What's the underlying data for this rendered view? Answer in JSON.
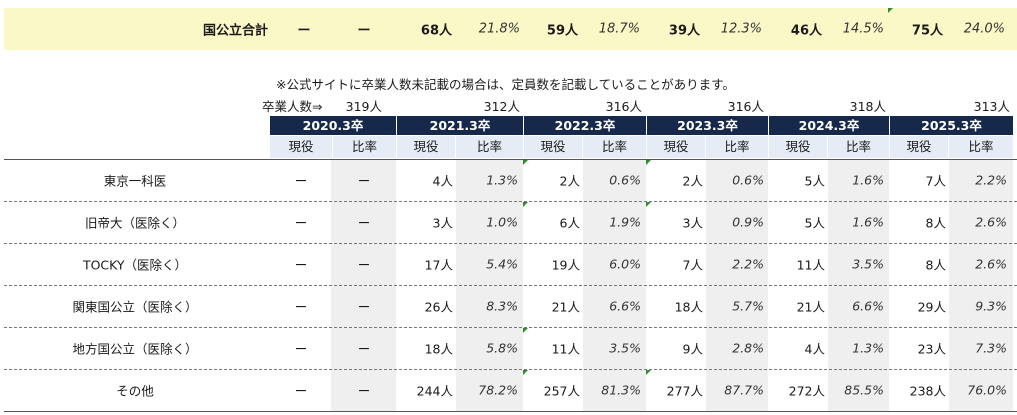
{
  "total": {
    "label": "国公立合計",
    "dash1": "ー",
    "dash2": "ー",
    "values": [
      {
        "count": "68人",
        "rate": "21.8%"
      },
      {
        "count": "59人",
        "rate": "18.7%"
      },
      {
        "count": "39人",
        "rate": "12.3%"
      },
      {
        "count": "46人",
        "rate": "14.5%"
      },
      {
        "count": "75人",
        "rate": "24.0%"
      }
    ]
  },
  "note": "※公式サイトに卒業人数未記載の場合は、定員数を記載していることがあります。",
  "graduates": {
    "label": "卒業人数⇒",
    "values": [
      "319人",
      "312人",
      "316人",
      "316人",
      "318人",
      "313人"
    ]
  },
  "years": [
    "2020.3卒",
    "2021.3卒",
    "2022.3卒",
    "2023.3卒",
    "2024.3卒",
    "2025.3卒"
  ],
  "subheaders": {
    "current": "現役",
    "ratio": "比率"
  },
  "rows": [
    {
      "label": "東京一科医",
      "c2020": "ー",
      "r2020": "ー",
      "cells": [
        [
          "4人",
          "1.3%"
        ],
        [
          "2人",
          "0.6%"
        ],
        [
          "2人",
          "0.6%"
        ],
        [
          "5人",
          "1.6%"
        ],
        [
          "7人",
          "2.2%"
        ]
      ]
    },
    {
      "label": "旧帝大（医除く）",
      "c2020": "ー",
      "r2020": "ー",
      "cells": [
        [
          "3人",
          "1.0%"
        ],
        [
          "6人",
          "1.9%"
        ],
        [
          "3人",
          "0.9%"
        ],
        [
          "5人",
          "1.6%"
        ],
        [
          "8人",
          "2.6%"
        ]
      ]
    },
    {
      "label": "TOCKY（医除く）",
      "c2020": "ー",
      "r2020": "ー",
      "cells": [
        [
          "17人",
          "5.4%"
        ],
        [
          "19人",
          "6.0%"
        ],
        [
          "7人",
          "2.2%"
        ],
        [
          "11人",
          "3.5%"
        ],
        [
          "8人",
          "2.6%"
        ]
      ]
    },
    {
      "label": "関東国公立（医除く）",
      "c2020": "ー",
      "r2020": "ー",
      "cells": [
        [
          "26人",
          "8.3%"
        ],
        [
          "21人",
          "6.6%"
        ],
        [
          "18人",
          "5.7%"
        ],
        [
          "21人",
          "6.6%"
        ],
        [
          "29人",
          "9.3%"
        ]
      ]
    },
    {
      "label": "地方国公立（医除く）",
      "c2020": "ー",
      "r2020": "ー",
      "cells": [
        [
          "18人",
          "5.8%"
        ],
        [
          "11人",
          "3.5%"
        ],
        [
          "9人",
          "2.8%"
        ],
        [
          "4人",
          "1.3%"
        ],
        [
          "23人",
          "7.3%"
        ]
      ]
    },
    {
      "label": "その他",
      "c2020": "ー",
      "r2020": "ー",
      "cells": [
        [
          "244人",
          "78.2%"
        ],
        [
          "257人",
          "81.3%"
        ],
        [
          "277人",
          "87.7%"
        ],
        [
          "272人",
          "85.5%"
        ],
        [
          "238人",
          "76.0%"
        ]
      ]
    }
  ]
}
